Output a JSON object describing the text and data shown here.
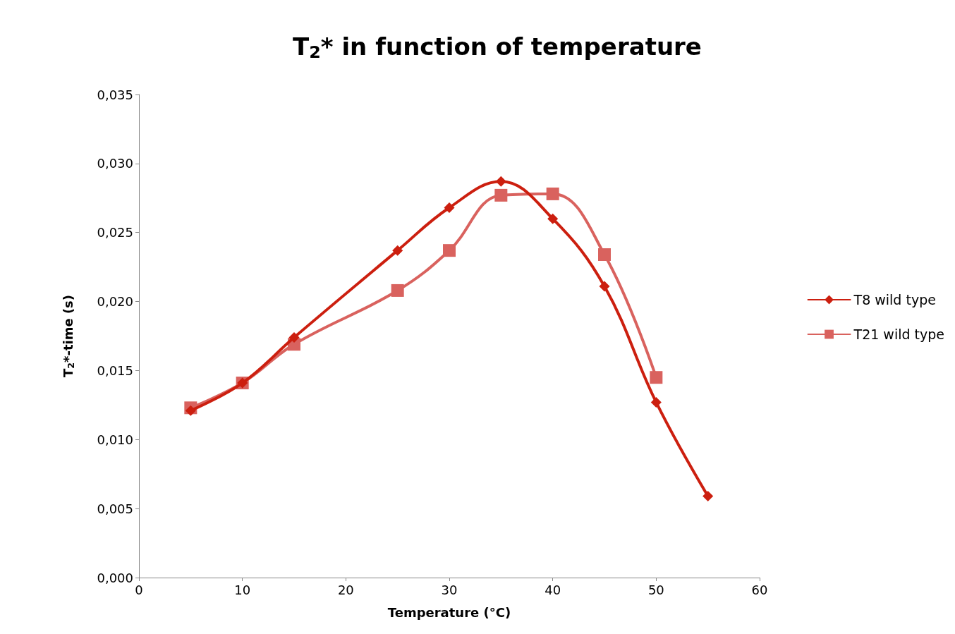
{
  "chart_data": {
    "type": "line",
    "title": "T$_{2}$* in function of temperature",
    "xlabel": "Temperature (°C)",
    "ylabel": "T$_{2}$*-time (s)",
    "x": [
      5,
      10,
      15,
      25,
      30,
      35,
      40,
      45,
      50,
      55
    ],
    "series": [
      {
        "name": "T8 wild type",
        "color": "#cc1f0f",
        "marker": "diamond",
        "values": [
          0.0121,
          0.0141,
          0.0174,
          0.0237,
          0.0268,
          0.0287,
          0.026,
          0.0211,
          0.0127,
          0.0059
        ]
      },
      {
        "name": "T21 wild type",
        "color": "#d9625e",
        "marker": "square",
        "values": [
          0.0123,
          0.0141,
          0.0169,
          0.0208,
          0.0237,
          0.0277,
          0.0278,
          0.0234,
          0.0145,
          null
        ]
      }
    ],
    "xlim": [
      0,
      60
    ],
    "xticks": [
      0,
      10,
      20,
      30,
      40,
      50,
      60
    ],
    "ylim": [
      0,
      0.035
    ],
    "yticks": [
      {
        "value": 0,
        "label": "0,000"
      },
      {
        "value": 0.005,
        "label": "0,005"
      },
      {
        "value": 0.01,
        "label": "0,010"
      },
      {
        "value": 0.015,
        "label": "0,015"
      },
      {
        "value": 0.02,
        "label": "0,020"
      },
      {
        "value": 0.025,
        "label": "0,025"
      },
      {
        "value": 0.03,
        "label": "0,030"
      },
      {
        "value": 0.035,
        "label": "0,035"
      }
    ],
    "grid": false,
    "legend": "right",
    "line_style": "solid"
  }
}
